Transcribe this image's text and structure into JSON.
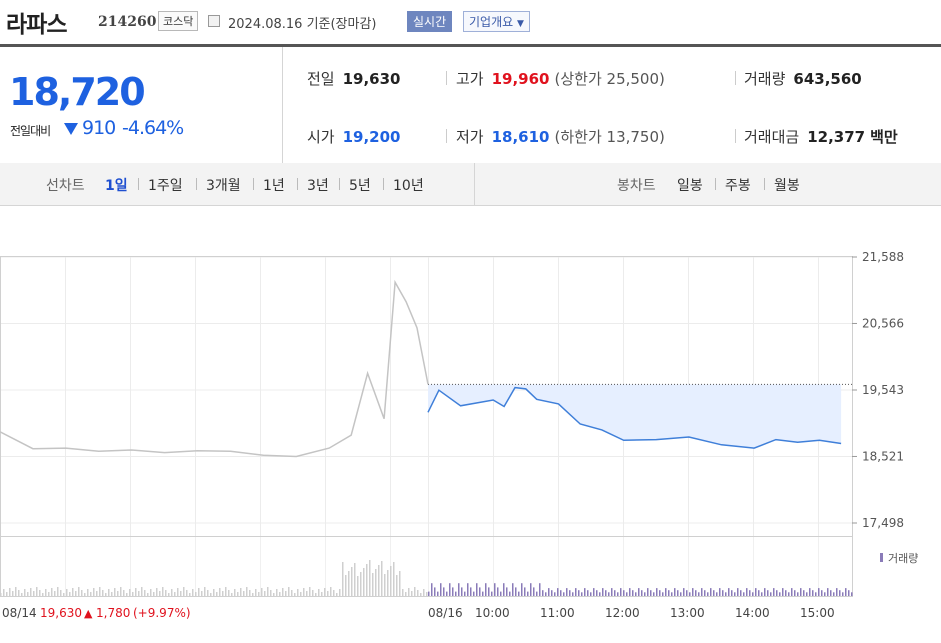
{
  "header": {
    "name": "라파스",
    "code": "214260",
    "market": "코스닥",
    "date_text": "2024.08.16 기준(장마감)",
    "realtime_label": "실시간",
    "company_label": "기업개요"
  },
  "summary": {
    "price": "18,720",
    "change_label": "전일대비",
    "change_value": "910",
    "change_pct": "-4.64%",
    "prev_close_label": "전일",
    "prev_close": "19,630",
    "high_label": "고가",
    "high": "19,960",
    "upper_limit_text": "(상한가 25,500)",
    "volume_label": "거래량",
    "volume": "643,560",
    "open_label": "시가",
    "open": "19,200",
    "low_label": "저가",
    "low": "18,610",
    "lower_limit_text": "(하한가 13,750)",
    "amount_label": "거래대금",
    "amount": "12,377",
    "amount_unit": "백만"
  },
  "toolbar": {
    "line_label": "선차트",
    "periods": [
      "1일",
      "1주일",
      "3개월",
      "1년",
      "3년",
      "5년",
      "10년"
    ],
    "candle_label": "봉차트",
    "candles": [
      "일봉",
      "주봉",
      "월봉"
    ]
  },
  "colors": {
    "up": "#e0121e",
    "down": "#1e61e0",
    "line_today": "#3f7fd9",
    "line_prev": "#c4c4c4",
    "fill_today": "#e6efff",
    "volume_today": "#8a7bb8"
  },
  "chart_data": {
    "type": "line",
    "y_ticks": [
      "21,588",
      "20,566",
      "19,543",
      "18,521",
      "17,498"
    ],
    "ylim": [
      17498,
      21588
    ],
    "reference_price": 19630,
    "x_labels": [
      "08/14",
      "08/16",
      "10:00",
      "11:00",
      "12:00",
      "13:00",
      "14:00",
      "15:00"
    ],
    "prev_day_summary": {
      "date": "08/14",
      "close": "19,630",
      "change": "1,780",
      "change_pct": "(+9.97%)"
    },
    "volume_legend": "거래량",
    "series": [
      {
        "x": [
          "08/14 09:00",
          "08/14 09:30",
          "08/14 10:00",
          "08/14 10:30",
          "08/14 11:00",
          "08/14 11:30",
          "08/14 12:00",
          "08/14 12:30",
          "08/14 13:00",
          "08/14 13:30",
          "08/14 14:00",
          "08/14 14:20",
          "08/14 14:35",
          "08/14 14:50",
          "08/14 15:00",
          "08/14 15:10",
          "08/14 15:20",
          "08/14 15:30"
        ],
        "values": [
          18900,
          18640,
          18650,
          18600,
          18620,
          18580,
          18610,
          18600,
          18540,
          18520,
          18650,
          18850,
          19800,
          19100,
          21200,
          20900,
          20500,
          19630
        ]
      },
      {
        "x": [
          "08/16 09:00",
          "08/16 09:10",
          "08/16 09:30",
          "08/16 10:00",
          "08/16 10:10",
          "08/16 10:20",
          "08/16 10:30",
          "08/16 10:40",
          "08/16 11:00",
          "08/16 11:20",
          "08/16 11:40",
          "08/16 12:00",
          "08/16 12:30",
          "08/16 13:00",
          "08/16 13:30",
          "08/16 14:00",
          "08/16 14:20",
          "08/16 14:40",
          "08/16 15:00",
          "08/16 15:20"
        ],
        "values": [
          19200,
          19540,
          19300,
          19390,
          19290,
          19580,
          19560,
          19400,
          19330,
          19020,
          18930,
          18770,
          18780,
          18820,
          18700,
          18650,
          18780,
          18740,
          18770,
          18720
        ]
      }
    ]
  }
}
